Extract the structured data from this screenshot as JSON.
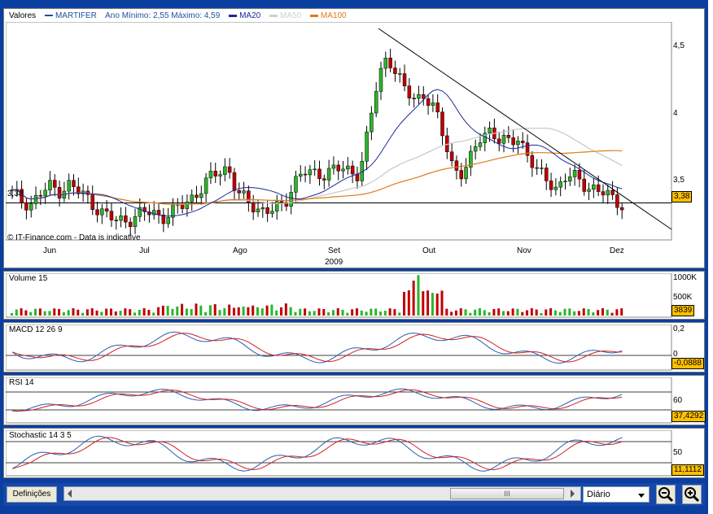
{
  "main_chart": {
    "legend": {
      "valores": "Valores",
      "ticker": "MARTIFER",
      "range_text": "Ano Mínimo: 2,55 Máximo: 4,59",
      "ma20": "MA20",
      "ma50": "MA50",
      "ma100": "MA100"
    },
    "colors": {
      "ticker": "#1f4e9c",
      "ma20": "#1a2a9c",
      "ma50": "#c8c8c8",
      "ma100": "#e07a1a",
      "up": "#2bb52b",
      "down": "#c00000"
    },
    "credit": "© IT-Finance.com - Data is indicative",
    "y_ticks": [
      "4,5",
      "4",
      "3,5"
    ],
    "left_label": "3,38",
    "last_value": "3,38",
    "months": [
      "Jun",
      "Jul",
      "Ago",
      "Set",
      "Out",
      "Nov",
      "Dez"
    ],
    "year": "2009"
  },
  "volume": {
    "title": "Volume 15",
    "y_ticks": [
      "1000K",
      "500K"
    ],
    "last_value": "3839"
  },
  "macd": {
    "title": "MACD 12 26 9",
    "y_ticks": [
      "0,2",
      "0"
    ],
    "last_value": "-0,0888"
  },
  "rsi": {
    "title": "RSI 14",
    "y_ticks": [
      "60"
    ],
    "last_value": "37,4292"
  },
  "stochastic": {
    "title": "Stochastic 14 3 5",
    "y_ticks": [
      "50"
    ],
    "last_value": "11,1112"
  },
  "toolbar": {
    "settings_label": "Definições",
    "scroll_thumb": "III",
    "period_value": "Diário",
    "zoom_out_icon": "zoom-out-icon",
    "zoom_in_icon": "zoom-in-icon"
  },
  "chart_data": {
    "type": "candlestick",
    "title": "MARTIFER",
    "ylim": [
      3.1,
      4.75
    ],
    "months": [
      "Jun",
      "Jul",
      "Ago",
      "Set",
      "Out",
      "Nov",
      "Dez"
    ],
    "close_path": [
      3.45,
      3.4,
      3.38,
      3.44,
      3.5,
      3.48,
      3.52,
      3.46,
      3.42,
      3.35,
      3.28,
      3.24,
      3.26,
      3.27,
      3.3,
      3.31,
      3.28,
      3.3,
      3.35,
      3.42,
      3.48,
      3.55,
      3.62,
      3.66,
      3.45,
      3.38,
      3.35,
      3.33,
      3.32,
      3.36,
      3.55,
      3.62,
      3.58,
      3.6,
      3.65,
      3.63,
      3.6,
      3.62,
      3.95,
      4.3,
      4.5,
      4.38,
      4.2,
      4.15,
      4.22,
      4.1,
      3.85,
      3.65,
      3.62,
      3.72,
      3.88,
      3.95,
      3.85,
      3.82,
      3.88,
      3.75,
      3.6,
      3.55,
      3.5,
      3.58,
      3.56,
      3.52,
      3.5,
      3.45,
      3.4,
      3.38
    ],
    "trendline": [
      [
        0.56,
        4.7
      ],
      [
        1.0,
        3.18
      ]
    ],
    "horizontal_line": 3.38
  }
}
